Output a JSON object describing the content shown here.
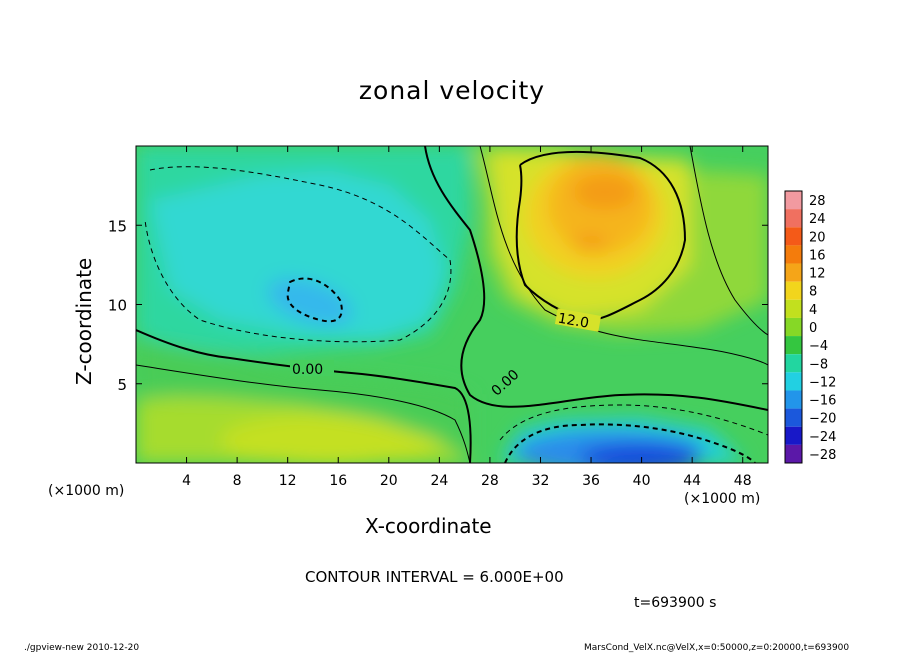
{
  "chart_data": {
    "type": "heatmap",
    "title": "zonal velocity",
    "xlabel": "X-coordinate",
    "ylabel": "Z-coordinate",
    "x_unit": "(×1000 m)",
    "xlim": [
      0,
      50
    ],
    "ylim": [
      0,
      20
    ],
    "x_ticks": [
      4,
      8,
      12,
      16,
      20,
      24,
      28,
      32,
      36,
      40,
      44,
      48
    ],
    "y_ticks": [
      5,
      10,
      15
    ],
    "contour_labels": [
      "0.00",
      "0.00",
      "12.0"
    ],
    "colorbar": {
      "levels": [
        28,
        24,
        20,
        16,
        12,
        8,
        4,
        0,
        -4,
        -8,
        -12,
        -16,
        -20,
        -24,
        -28
      ],
      "colors": [
        "#f29aa0",
        "#f07060",
        "#f45a18",
        "#f47c0c",
        "#f5a518",
        "#f2d51c",
        "#c2e01e",
        "#86d826",
        "#34c640",
        "#22d6a0",
        "#22d0e2",
        "#2295ea",
        "#1b58dc",
        "#1818c8",
        "#5b18a8"
      ]
    },
    "contour_interval": "CONTOUR INTERVAL = 6.000E+00",
    "time": "t=693900 s",
    "footer_left": "./gpview-new   2010-12-20",
    "footer_right": "MarsCond_VelX.nc@VelX,x=0:50000,z=0:20000,t=693900"
  }
}
